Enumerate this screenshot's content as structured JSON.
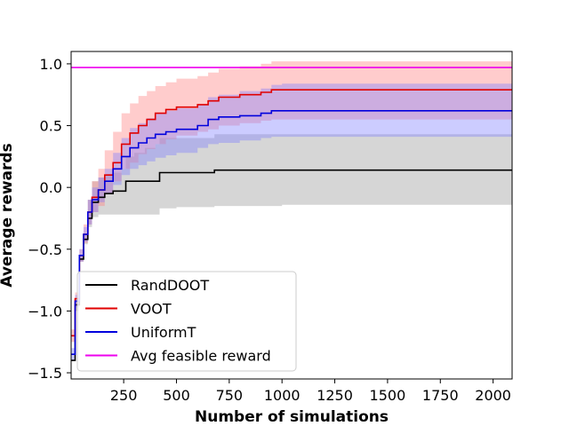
{
  "chart_data": {
    "type": "line",
    "title": "",
    "xlabel": "Number of simulations",
    "ylabel": "Average rewards",
    "xlim": [
      1,
      2090
    ],
    "ylim": [
      -1.55,
      1.1
    ],
    "xticks": [
      250,
      500,
      750,
      1000,
      1250,
      1500,
      1750,
      2000
    ],
    "yticks": [
      -1.5,
      -1.0,
      -0.5,
      0.0,
      0.5,
      1.0
    ],
    "xtick_labels": [
      "250",
      "500",
      "750",
      "1000",
      "1250",
      "1500",
      "1750",
      "2000"
    ],
    "ytick_labels": [
      "−1.5",
      "−1.0",
      "−0.5",
      "0.0",
      "0.5",
      "1.0"
    ],
    "grid": false,
    "legend_position": "lower-left",
    "series": [
      {
        "name": "RandDOOT",
        "color": "#000000",
        "band_color": "#999999",
        "x": [
          1,
          20,
          40,
          60,
          80,
          100,
          130,
          160,
          200,
          240,
          260,
          300,
          350,
          400,
          420,
          500,
          600,
          680,
          700,
          800,
          1000,
          2090
        ],
        "y": [
          -1.4,
          -0.95,
          -0.58,
          -0.42,
          -0.25,
          -0.12,
          -0.08,
          -0.05,
          -0.03,
          -0.03,
          0.05,
          0.05,
          0.05,
          0.05,
          0.12,
          0.12,
          0.12,
          0.14,
          0.14,
          0.14,
          0.14,
          0.14
        ],
        "lower": [
          -1.4,
          -1.0,
          -0.6,
          -0.46,
          -0.32,
          -0.24,
          -0.22,
          -0.22,
          -0.22,
          -0.22,
          -0.22,
          -0.22,
          -0.22,
          -0.22,
          -0.17,
          -0.16,
          -0.16,
          -0.15,
          -0.15,
          -0.15,
          -0.14,
          -0.14
        ],
        "upper": [
          -1.4,
          -0.9,
          -0.55,
          -0.38,
          -0.1,
          0.05,
          0.08,
          0.1,
          0.12,
          0.15,
          0.25,
          0.28,
          0.32,
          0.35,
          0.4,
          0.4,
          0.4,
          0.43,
          0.43,
          0.43,
          0.43,
          0.43
        ]
      },
      {
        "name": "VOOT",
        "color": "#e00000",
        "band_color": "#ff8080",
        "x": [
          1,
          20,
          40,
          60,
          80,
          100,
          130,
          160,
          200,
          240,
          280,
          320,
          360,
          400,
          450,
          500,
          600,
          650,
          700,
          800,
          900,
          950,
          1000,
          2090
        ],
        "y": [
          -1.2,
          -0.9,
          -0.55,
          -0.38,
          -0.2,
          -0.08,
          -0.02,
          0.1,
          0.2,
          0.35,
          0.44,
          0.5,
          0.55,
          0.6,
          0.63,
          0.65,
          0.67,
          0.7,
          0.73,
          0.75,
          0.77,
          0.79,
          0.79,
          0.79
        ],
        "lower": [
          -1.25,
          -0.95,
          -0.6,
          -0.45,
          -0.3,
          -0.2,
          -0.15,
          -0.05,
          0.05,
          0.15,
          0.2,
          0.27,
          0.31,
          0.35,
          0.39,
          0.42,
          0.45,
          0.47,
          0.5,
          0.52,
          0.54,
          0.55,
          0.55,
          0.55
        ],
        "upper": [
          -1.15,
          -0.85,
          -0.5,
          -0.3,
          -0.1,
          0.05,
          0.15,
          0.3,
          0.45,
          0.6,
          0.68,
          0.74,
          0.78,
          0.82,
          0.85,
          0.88,
          0.9,
          0.93,
          0.96,
          0.98,
          1.0,
          1.02,
          1.02,
          1.02
        ]
      },
      {
        "name": "UniformT",
        "color": "#0000dd",
        "band_color": "#8080ff",
        "x": [
          1,
          20,
          40,
          60,
          80,
          100,
          130,
          160,
          200,
          240,
          280,
          320,
          360,
          400,
          450,
          500,
          600,
          650,
          700,
          800,
          900,
          950,
          1000,
          2090
        ],
        "y": [
          -1.35,
          -0.92,
          -0.55,
          -0.38,
          -0.2,
          -0.1,
          -0.02,
          0.05,
          0.15,
          0.25,
          0.32,
          0.36,
          0.4,
          0.43,
          0.45,
          0.47,
          0.5,
          0.55,
          0.57,
          0.58,
          0.6,
          0.62,
          0.62,
          0.62
        ],
        "lower": [
          -1.4,
          -0.97,
          -0.6,
          -0.44,
          -0.3,
          -0.2,
          -0.12,
          -0.05,
          0.02,
          0.1,
          0.15,
          0.18,
          0.21,
          0.24,
          0.26,
          0.28,
          0.32,
          0.35,
          0.36,
          0.38,
          0.4,
          0.41,
          0.41,
          0.41
        ],
        "upper": [
          -1.3,
          -0.87,
          -0.5,
          -0.32,
          -0.1,
          0.0,
          0.08,
          0.15,
          0.28,
          0.4,
          0.48,
          0.52,
          0.56,
          0.6,
          0.62,
          0.64,
          0.67,
          0.73,
          0.75,
          0.78,
          0.8,
          0.83,
          0.84,
          0.84
        ]
      },
      {
        "name": "Avg feasible reward",
        "color": "#ee00ee",
        "band_color": "",
        "x": [
          1,
          2090
        ],
        "y": [
          0.97,
          0.97
        ],
        "lower": [],
        "upper": []
      }
    ]
  }
}
